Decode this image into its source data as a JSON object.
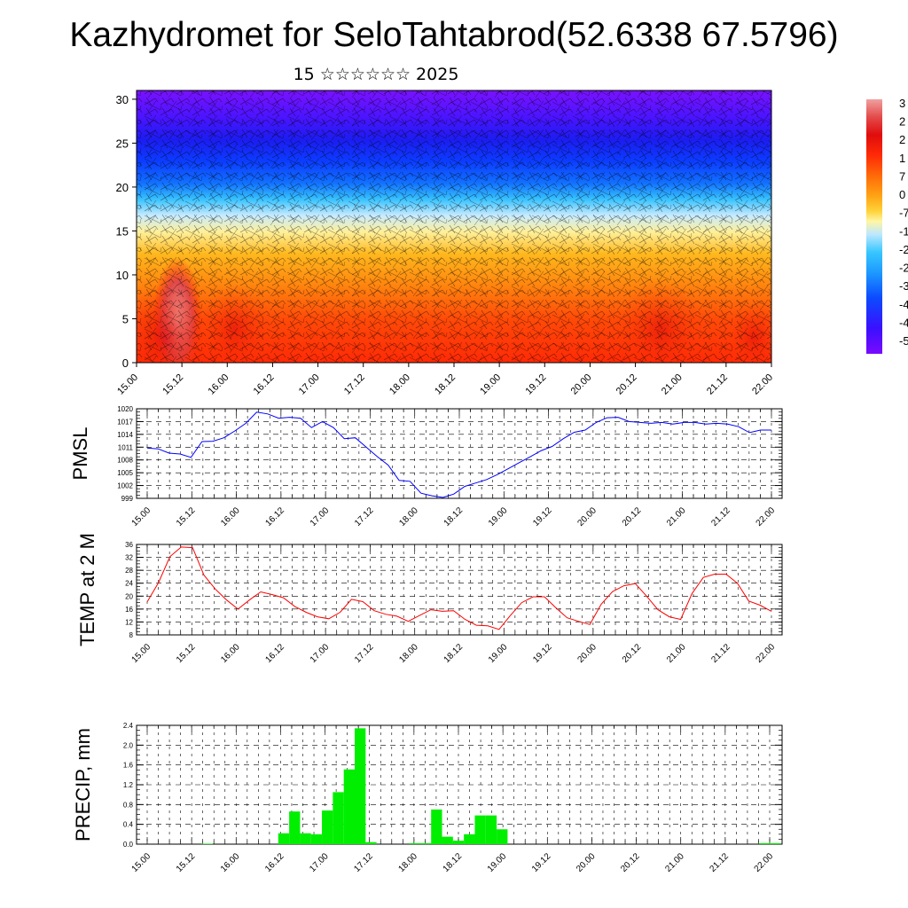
{
  "header": {
    "title": "Kazhydromet for SeloTahtabrod(52.6338 67.5796)",
    "subtitle": "15 ☆☆☆☆☆☆ 2025"
  },
  "colors": {
    "pmsl_line": "#0000ff",
    "temp_line": "#ff0000",
    "precip_bar": "#00ee00",
    "colorbar": [
      "#7a0aff",
      "#3a10ff",
      "#0c4bff",
      "#1d9aff",
      "#38c7ff",
      "#bde8ff",
      "#fff6a5",
      "#ffd33a",
      "#ffa414",
      "#ff6a08",
      "#ff2a06",
      "#e00c0c",
      "#e44a4a",
      "#f0a0a0"
    ]
  },
  "chart_data": [
    {
      "type": "heatmap",
      "title": "15 ☆☆☆☆☆☆ 2025",
      "x_tick_labels": [
        "15.00",
        "15.12",
        "16.00",
        "16.12",
        "17.00",
        "17.12",
        "18.00",
        "18.12",
        "19.00",
        "19.12",
        "20.00",
        "20.12",
        "21.00",
        "21.12",
        "22.00"
      ],
      "y_ticks": [
        0,
        5,
        10,
        15,
        20,
        25,
        30
      ],
      "ylim": [
        0,
        31
      ],
      "colorbar_labels": [
        "3",
        "2",
        "2",
        "1",
        "7",
        "0",
        "-7",
        "-1",
        "-2",
        "-2",
        "-3",
        "-4",
        "-4",
        "-5"
      ],
      "overlay": "wind barbs"
    },
    {
      "type": "line",
      "ylabel": "PMSL",
      "x_tick_labels": [
        "15.00",
        "15.12",
        "16.00",
        "16.12",
        "17.00",
        "17.12",
        "18.00",
        "18.12",
        "19.00",
        "19.12",
        "20.00",
        "20.12",
        "21.00",
        "21.12",
        "22.00"
      ],
      "y_ticks": [
        999,
        1002,
        1005,
        1008,
        1011,
        1014,
        1017,
        1020
      ],
      "ylim": [
        999,
        1020
      ],
      "series": [
        {
          "values": [
            1010.8,
            1010.6,
            1009.6,
            1009.4,
            1008.6,
            1012.3,
            1012.4,
            1013.2,
            1014.8,
            1016.6,
            1019.2,
            1018.8,
            1017.8,
            1018.0,
            1017.8,
            1015.6,
            1017.0,
            1015.6,
            1013.0,
            1013.2,
            1011.0,
            1008.8,
            1006.8,
            1003.2,
            1003.0,
            1000.2,
            999.6,
            999.2,
            1000.0,
            1001.8,
            1002.6,
            1003.4,
            1004.6,
            1006.0,
            1007.4,
            1008.8,
            1010.2,
            1011.2,
            1013.0,
            1014.5,
            1015.0,
            1016.8,
            1017.9,
            1018.0,
            1017.0,
            1016.8,
            1016.6,
            1016.8,
            1016.4,
            1016.8,
            1016.8,
            1016.4,
            1016.6,
            1016.4,
            1015.8,
            1014.4,
            1015.0,
            1015.0
          ]
        }
      ]
    },
    {
      "type": "line",
      "ylabel": "TEMP at 2 M",
      "x_tick_labels": [
        "15.00",
        "15.12",
        "16.00",
        "16.12",
        "17.00",
        "17.12",
        "18.00",
        "18.12",
        "19.00",
        "19.12",
        "20.00",
        "20.12",
        "21.00",
        "21.12",
        "22.00"
      ],
      "y_ticks": [
        8,
        12,
        16,
        20,
        24,
        28,
        32,
        36
      ],
      "ylim": [
        8,
        36
      ],
      "series": [
        {
          "values": [
            18.2,
            24.2,
            32.2,
            35.2,
            35.0,
            26.5,
            22.2,
            18.8,
            16.0,
            18.8,
            21.3,
            20.5,
            19.5,
            16.8,
            15.0,
            13.6,
            13.0,
            15.0,
            19.0,
            18.3,
            15.5,
            14.4,
            13.8,
            12.2,
            14.0,
            15.8,
            15.3,
            15.5,
            12.8,
            11.0,
            10.8,
            9.7,
            14.0,
            18.0,
            19.8,
            19.8,
            16.4,
            13.3,
            12.2,
            11.2,
            17.5,
            21.4,
            23.2,
            23.9,
            20.0,
            15.8,
            13.6,
            12.8,
            20.8,
            25.8,
            26.8,
            26.8,
            24.0,
            18.5,
            17.2,
            15.3
          ]
        }
      ]
    },
    {
      "type": "bar",
      "ylabel": "PRECIP, mm",
      "x_tick_labels": [
        "15.00",
        "15.12",
        "16.00",
        "16.12",
        "17.00",
        "17.12",
        "18.00",
        "18.12",
        "19.00",
        "19.12",
        "20.00",
        "20.12",
        "21.00",
        "21.12",
        "22.00"
      ],
      "y_ticks": [
        "0.0",
        "0.4",
        "0.8",
        "1.2",
        "1.6",
        "2.0",
        "2.4"
      ],
      "ylim": [
        0,
        2.4
      ],
      "values": [
        0,
        0,
        0,
        0,
        0,
        0.01,
        0,
        0,
        0,
        0,
        0,
        0,
        0.22,
        0.66,
        0.22,
        0.2,
        0.68,
        1.05,
        1.51,
        2.34,
        0.04,
        0,
        0,
        0,
        0.02,
        0.02,
        0.7,
        0.15,
        0.07,
        0.2,
        0.58,
        0.58,
        0.3,
        0,
        0,
        0,
        0,
        0,
        0,
        0,
        0,
        0,
        0,
        0,
        0,
        0,
        0,
        0,
        0,
        0,
        0,
        0,
        0,
        0,
        0,
        0,
        0.02,
        0.02
      ]
    }
  ]
}
